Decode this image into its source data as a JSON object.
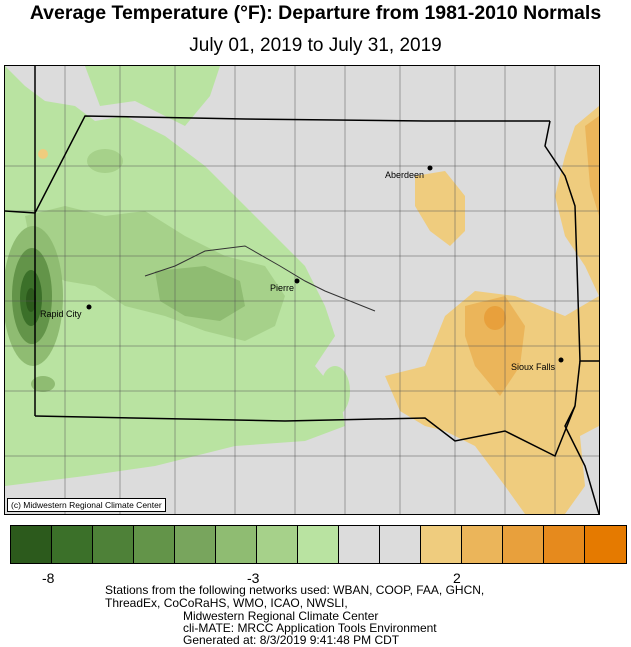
{
  "title": "Average Temperature (°F): Departure from 1981-2010 Normals",
  "subtitle": "July 01, 2019 to July 31, 2019",
  "credit": "(c) Midwestern Regional Climate Center",
  "cities": [
    {
      "name": "Aberdeen"
    },
    {
      "name": "Pierre"
    },
    {
      "name": "Rapid City"
    },
    {
      "name": "Sioux Falls"
    }
  ],
  "legend": {
    "colors": [
      "#2c5a1c",
      "#3b7029",
      "#4e8138",
      "#639449",
      "#78a55d",
      "#8fbc72",
      "#a6d18a",
      "#b9e3a1",
      "#dcdcdc",
      "#dcdcdc",
      "#efcc7e",
      "#ebb55a",
      "#e8a03c",
      "#e68a1d",
      "#e57a00"
    ],
    "tick_labels": [
      "-8",
      "-3",
      "2"
    ]
  },
  "footer": {
    "line1": "Stations from the following networks used: WBAN, COOP, FAA, GHCN,",
    "line2": "ThreadEx, CoCoRaHS, WMO, ICAO, NWSLI,",
    "line3": "Midwestern Regional Climate Center",
    "line4": "cli-MATE: MRCC Application Tools Environment",
    "line5": "Generated at: 8/3/2019 9:41:48 PM CDT"
  }
}
